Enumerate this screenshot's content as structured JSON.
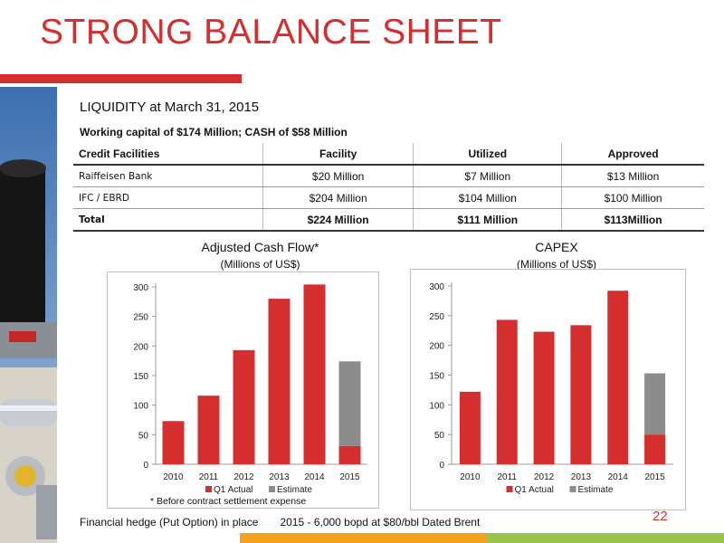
{
  "slide": {
    "title": "STRONG BALANCE SHEET",
    "liquidity": "LIQUIDITY at March 31, 2015",
    "working_capital": "Working capital of $174 Million; CASH of $58 Million",
    "footnote": "* Before contract settlement expense",
    "hedge_label": "Financial hedge (Put Option) in place",
    "hedge_detail": "2015 - 6,000 bopd at $80/bbl Dated Brent",
    "page_number": "22"
  },
  "table": {
    "headers": [
      "Credit Facilities",
      "Facility",
      "Utilized",
      "Approved"
    ],
    "rows": [
      [
        "Raiffeisen Bank",
        "$20 Million",
        "$7 Million",
        "$13 Million"
      ],
      [
        "IFC / EBRD",
        "$204 Million",
        "$104 Million",
        "$100 Million"
      ]
    ],
    "total": [
      "Total",
      "$224 Million",
      "$111 Million",
      "$113Million"
    ]
  },
  "colors": {
    "accent": "#d42e2e",
    "actual": "#d42e2e",
    "estimate": "#8c8c8c",
    "orange": "#f4a11d",
    "green": "#9cc44a"
  },
  "chart_data": [
    {
      "type": "bar",
      "stacked": true,
      "title": "Adjusted Cash Flow*",
      "subtitle": "(Millions of US$)",
      "categories": [
        "2010",
        "2011",
        "2012",
        "2013",
        "2014",
        "2015"
      ],
      "series": [
        {
          "name": "Q1 Actual",
          "values": [
            73,
            116,
            193,
            280,
            304,
            31
          ]
        },
        {
          "name": "Estimate",
          "values": [
            0,
            0,
            0,
            0,
            0,
            143
          ]
        }
      ],
      "ylim": [
        0,
        300
      ],
      "yticks": [
        0,
        50,
        100,
        150,
        200,
        250,
        300
      ],
      "legend": "bottom"
    },
    {
      "type": "bar",
      "stacked": true,
      "title": "CAPEX",
      "subtitle": "(Millions of US$)",
      "categories": [
        "2010",
        "2011",
        "2012",
        "2013",
        "2014",
        "2015"
      ],
      "series": [
        {
          "name": "Q1 Actual",
          "values": [
            122,
            243,
            223,
            234,
            292,
            50
          ]
        },
        {
          "name": "Estimate",
          "values": [
            0,
            0,
            0,
            0,
            0,
            103
          ]
        }
      ],
      "ylim": [
        0,
        300
      ],
      "yticks": [
        0,
        50,
        100,
        150,
        200,
        250,
        300
      ],
      "legend": "bottom"
    }
  ]
}
